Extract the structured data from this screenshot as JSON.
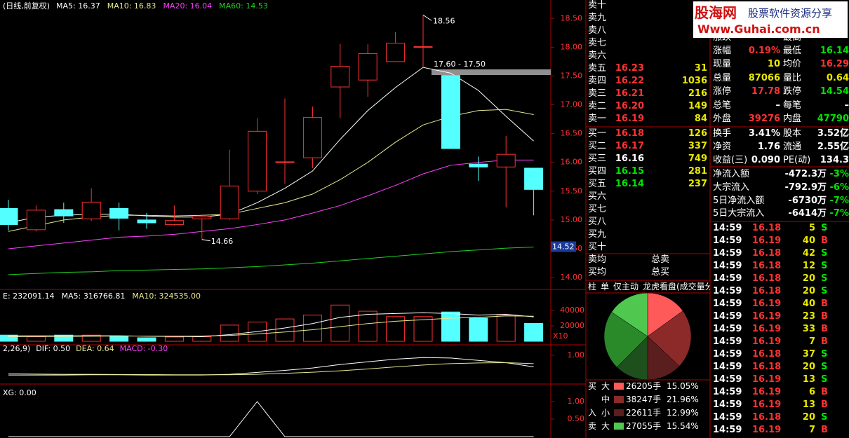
{
  "kline": {
    "title": "(日线,前复权)",
    "ma_labels": [
      {
        "text": "MA5: 16.37",
        "color": "#ffffff"
      },
      {
        "text": "MA10: 16.83",
        "color": "#e8e890"
      },
      {
        "text": "MA20: 16.04",
        "color": "#ff40ff"
      },
      {
        "text": "MA60: 14.53",
        "color": "#20d020"
      }
    ],
    "ylim": [
      13.83,
      18.82
    ],
    "yticks": [
      {
        "value": 18.5,
        "label": "18.50"
      },
      {
        "value": 18,
        "label": "18.00"
      },
      {
        "value": 17.5,
        "label": "17.50"
      },
      {
        "value": 17,
        "label": "17.00"
      },
      {
        "value": 16.5,
        "label": "16.50"
      },
      {
        "value": 16,
        "label": "16.00"
      },
      {
        "value": 15.5,
        "label": "15.50"
      },
      {
        "value": 15,
        "label": "15.00"
      },
      {
        "value": 14.5,
        "label": "14.50"
      },
      {
        "value": 14,
        "label": "14.00"
      }
    ],
    "up_color": "#ff3232",
    "down_color": "#54ffff",
    "candles": [
      {
        "o": 15.2,
        "h": 15.35,
        "l": 14.82,
        "c": 14.92
      },
      {
        "o": 14.83,
        "h": 15.25,
        "l": 14.8,
        "c": 15.17
      },
      {
        "o": 15.18,
        "h": 15.3,
        "l": 14.95,
        "c": 15.07
      },
      {
        "o": 15.02,
        "h": 15.55,
        "l": 14.98,
        "c": 15.31
      },
      {
        "o": 15.2,
        "h": 15.3,
        "l": 14.82,
        "c": 15.03
      },
      {
        "o": 15.0,
        "h": 15.12,
        "l": 14.85,
        "c": 14.95
      },
      {
        "o": 14.92,
        "h": 15.25,
        "l": 14.9,
        "c": 14.99
      },
      {
        "o": 15.02,
        "h": 15.1,
        "l": 14.66,
        "c": 15.06
      },
      {
        "o": 15.02,
        "h": 16.22,
        "l": 15.0,
        "c": 15.59
      },
      {
        "o": 15.5,
        "h": 16.77,
        "l": 15.45,
        "c": 16.54
      },
      {
        "o": 16.0,
        "h": 17.11,
        "l": 15.63,
        "c": 16.01
      },
      {
        "o": 16.08,
        "h": 16.97,
        "l": 15.9,
        "c": 16.78
      },
      {
        "o": 17.31,
        "h": 18.06,
        "l": 16.77,
        "c": 17.67
      },
      {
        "o": 17.43,
        "h": 18.05,
        "l": 17.14,
        "c": 17.89
      },
      {
        "o": 17.75,
        "h": 18.26,
        "l": 17.75,
        "c": 18.07
      },
      {
        "o": 18.0,
        "h": 18.56,
        "l": 17.65,
        "c": 18.01
      },
      {
        "o": 17.51,
        "h": 17.51,
        "l": 16.24,
        "c": 16.24
      },
      {
        "o": 15.97,
        "h": 16.1,
        "l": 15.68,
        "c": 15.92
      },
      {
        "o": 15.92,
        "h": 16.46,
        "l": 15.22,
        "c": 16.14
      },
      {
        "o": 15.9,
        "h": 15.9,
        "l": 15.08,
        "c": 15.53
      }
    ],
    "ma": [
      {
        "color": "#ffffff",
        "values": [
          14.95,
          15.05,
          15.08,
          15.1,
          15.1,
          15.07,
          15.05,
          15.05,
          15.1,
          15.3,
          15.55,
          15.85,
          16.4,
          16.9,
          17.3,
          17.65,
          17.55,
          17.25,
          16.8,
          16.37
        ]
      },
      {
        "color": "#e8e890",
        "values": [
          14.8,
          14.9,
          15.0,
          15.05,
          15.08,
          15.08,
          15.07,
          15.08,
          15.1,
          15.2,
          15.3,
          15.45,
          15.7,
          16.0,
          16.35,
          16.65,
          16.8,
          16.9,
          16.92,
          16.83
        ]
      },
      {
        "color": "#ff40ff",
        "values": [
          14.5,
          14.55,
          14.6,
          14.65,
          14.7,
          14.72,
          14.75,
          14.8,
          14.85,
          14.92,
          15.0,
          15.12,
          15.25,
          15.42,
          15.6,
          15.8,
          15.95,
          16.0,
          16.04,
          16.04
        ]
      },
      {
        "color": "#20d020",
        "values": [
          14.05,
          14.07,
          14.09,
          14.1,
          14.12,
          14.13,
          14.14,
          14.15,
          14.17,
          14.19,
          14.22,
          14.25,
          14.29,
          14.33,
          14.37,
          14.41,
          14.45,
          14.48,
          14.51,
          14.53
        ]
      }
    ],
    "high_label": "18.56",
    "low_label": "14.66",
    "range_label": "17.60 - 17.50",
    "price_tag": "14.52"
  },
  "volume": {
    "labels": [
      {
        "text": "E: 232091.14",
        "color": "#ffffff"
      },
      {
        "text": "MA5: 316766.81",
        "color": "#ffffff"
      },
      {
        "text": "MA10: 324535.00",
        "color": "#e8e890"
      }
    ],
    "unit_label": "X10",
    "ylim": [
      0,
      65455
    ],
    "yticks": [
      40000,
      20000
    ],
    "values": [
      8000,
      6000,
      8000,
      8000,
      6000,
      4500,
      5500,
      6000,
      21000,
      25000,
      29000,
      34000,
      47000,
      39000,
      32000,
      32000,
      38000,
      30000,
      34000,
      23209
    ],
    "ma5": [
      7000,
      7000,
      7000,
      7200,
      7200,
      6600,
      6400,
      6000,
      8600,
      12600,
      17300,
      23000,
      31000,
      35000,
      36000,
      37000,
      36000,
      34000,
      35000,
      31677
    ],
    "ma10": [
      6000,
      6200,
      6400,
      6600,
      6800,
      6800,
      6800,
      6800,
      7600,
      9600,
      12000,
      15000,
      19000,
      23000,
      26000,
      28000,
      30000,
      31000,
      33000,
      32454
    ]
  },
  "macd": {
    "labels": [
      {
        "text": "2,26,9)",
        "color": "#ffffff"
      },
      {
        "text": "DIF: 0.50",
        "color": "#ffffff"
      },
      {
        "text": "DEA: 0.64",
        "color": "#e8e890"
      },
      {
        "text": "MACD: -0.30",
        "color": "#ff40ff"
      }
    ],
    "ylim": [
      -0.15,
      1.36
    ],
    "yticks": [
      {
        "value": 1,
        "label": "1.00"
      }
    ],
    "dif": [
      0.15,
      0.15,
      0.15,
      0.16,
      0.16,
      0.15,
      0.15,
      0.15,
      0.18,
      0.26,
      0.35,
      0.45,
      0.6,
      0.72,
      0.83,
      0.9,
      0.88,
      0.78,
      0.68,
      0.5
    ],
    "dea": [
      0.2,
      0.19,
      0.18,
      0.18,
      0.17,
      0.17,
      0.16,
      0.16,
      0.16,
      0.18,
      0.22,
      0.27,
      0.33,
      0.41,
      0.5,
      0.58,
      0.64,
      0.67,
      0.68,
      0.64
    ]
  },
  "xg": {
    "label": "XG: 0.00",
    "ylim": [
      -0.04,
      1.36
    ],
    "yticks": [
      {
        "value": 1,
        "label": "1.00"
      },
      {
        "value": 0.5,
        "label": "0.50"
      }
    ],
    "values": [
      0,
      0,
      0,
      0,
      0,
      0,
      0,
      0,
      0,
      1,
      0,
      0,
      0,
      0,
      0,
      0,
      0,
      0,
      0,
      0
    ]
  },
  "order_book": {
    "sell": [
      {
        "label": "卖十"
      },
      {
        "label": "卖九"
      },
      {
        "label": "卖八"
      },
      {
        "label": "卖七"
      },
      {
        "label": "卖六"
      },
      {
        "label": "卖五",
        "price": "16.23",
        "volume": "31",
        "color": "#ff3232"
      },
      {
        "label": "卖四",
        "price": "16.22",
        "volume": "1036",
        "color": "#ff3232"
      },
      {
        "label": "卖三",
        "price": "16.21",
        "volume": "216",
        "color": "#ff3232"
      },
      {
        "label": "卖二",
        "price": "16.20",
        "volume": "149",
        "color": "#ff3232"
      },
      {
        "label": "卖一",
        "price": "16.19",
        "volume": "84",
        "color": "#ff3232"
      }
    ],
    "buy": [
      {
        "label": "买一",
        "price": "16.18",
        "volume": "126",
        "color": "#ff3232"
      },
      {
        "label": "买二",
        "price": "16.17",
        "volume": "337",
        "color": "#ff3232"
      },
      {
        "label": "买三",
        "price": "16.16",
        "volume": "749",
        "color": "#ffffff"
      },
      {
        "label": "买四",
        "price": "16.15",
        "volume": "281",
        "color": "#00e600"
      },
      {
        "label": "买五",
        "price": "16.14",
        "volume": "237",
        "color": "#00e600"
      },
      {
        "label": "买六"
      },
      {
        "label": "买七"
      },
      {
        "label": "买八"
      },
      {
        "label": "买九"
      },
      {
        "label": "买十"
      }
    ],
    "avg_sell": "卖均",
    "total_sell": "总卖",
    "avg_buy": "买均",
    "total_buy": "总买"
  },
  "tabs": [
    "柱",
    "单",
    "仅主动",
    "龙虎看盘(成交量分"
  ],
  "flow_pie": {
    "slices": [
      {
        "value": 15.05,
        "color": "#ff5a5a"
      },
      {
        "value": 21.96,
        "color": "#8c2a2a"
      },
      {
        "value": 12.99,
        "color": "#5a1e1e"
      },
      {
        "value": 12.46,
        "color": "#1e501e"
      },
      {
        "value": 22.0,
        "color": "#2a8a2a"
      },
      {
        "value": 15.54,
        "color": "#50c850"
      }
    ],
    "buy_side": [
      "买",
      "入"
    ],
    "sell_side": "卖",
    "rows": [
      {
        "size": "大",
        "color": "#ff5a5a",
        "amount": "26205手",
        "pct": "15.05%"
      },
      {
        "size": "中",
        "color": "#8c2a2a",
        "amount": "38247手",
        "pct": "21.96%"
      },
      {
        "size": "小",
        "color": "#5a1e1e",
        "amount": "22611手",
        "pct": "12.99%"
      },
      {
        "size": "大",
        "color": "#50c850",
        "amount": "27055手",
        "pct": "15.54%"
      }
    ]
  },
  "logo": {
    "name": "股海网",
    "slogan": "股票软件资源分享",
    "url": "Www.Guhai.com.cn"
  },
  "quote": {
    "partial_row": [
      "涨跌",
      "最高"
    ],
    "rows": [
      [
        {
          "t": "涨幅"
        },
        {
          "t": "0.19%",
          "c": "#ff3232"
        },
        {
          "t": "最低"
        },
        {
          "t": "16.14",
          "c": "#00e600"
        }
      ],
      [
        {
          "t": "现量"
        },
        {
          "t": "10",
          "c": "#e8e800"
        },
        {
          "t": "均价"
        },
        {
          "t": "16.29",
          "c": "#ff3232"
        }
      ],
      [
        {
          "t": "总量"
        },
        {
          "t": "87066",
          "c": "#e8e800"
        },
        {
          "t": "量比"
        },
        {
          "t": "0.64",
          "c": "#e8e800"
        }
      ],
      [
        {
          "t": "涨停"
        },
        {
          "t": "17.78",
          "c": "#ff3232"
        },
        {
          "t": "跌停"
        },
        {
          "t": "14.54",
          "c": "#00e600"
        }
      ],
      [
        {
          "t": "总笔"
        },
        {
          "t": "–",
          "c": "#ffffff"
        },
        {
          "t": "每笔"
        },
        {
          "t": "–",
          "c": "#ffffff"
        }
      ],
      [
        {
          "t": "外盘"
        },
        {
          "t": "39276",
          "c": "#ff3232"
        },
        {
          "t": "内盘"
        },
        {
          "t": "47790",
          "c": "#00e600"
        }
      ],
      [
        {
          "t": "换手"
        },
        {
          "t": "3.41%",
          "c": "#ffffff"
        },
        {
          "t": "股本"
        },
        {
          "t": "3.52亿",
          "c": "#ffffff"
        }
      ],
      [
        {
          "t": "净资"
        },
        {
          "t": "1.76",
          "c": "#ffffff"
        },
        {
          "t": "流通"
        },
        {
          "t": "2.55亿",
          "c": "#ffffff"
        }
      ],
      [
        {
          "t": "收益(三)"
        },
        {
          "t": "0.090",
          "c": "#ffffff"
        },
        {
          "t": "PE(动)"
        },
        {
          "t": "134.3",
          "c": "#ffffff"
        }
      ]
    ],
    "flows": [
      [
        {
          "t": "净流入额"
        },
        {
          "t": "-472.3万",
          "c": "#ffffff"
        },
        {
          "t": "-3%",
          "c": "#00e600"
        }
      ],
      [
        {
          "t": "大宗流入"
        },
        {
          "t": "-792.9万",
          "c": "#ffffff"
        },
        {
          "t": "-6%",
          "c": "#00e600"
        }
      ],
      [
        {
          "t": "5日净流入额"
        },
        {
          "t": "-6730万",
          "c": "#ffffff"
        },
        {
          "t": "-7%",
          "c": "#00e600"
        }
      ],
      [
        {
          "t": "5日大宗流入"
        },
        {
          "t": "-6414万",
          "c": "#ffffff"
        },
        {
          "t": "-7%",
          "c": "#00e600"
        }
      ]
    ]
  },
  "trades": {
    "price_color": "#ff3232",
    "side_colors": {
      "B": "#ff3232",
      "S": "#00e600"
    },
    "rows": [
      [
        "14:59",
        "16.18",
        "5",
        "S"
      ],
      [
        "14:59",
        "16.19",
        "40",
        "B"
      ],
      [
        "14:59",
        "16.18",
        "42",
        "S"
      ],
      [
        "14:59",
        "16.18",
        "12",
        "S"
      ],
      [
        "14:59",
        "16.18",
        "20",
        "S"
      ],
      [
        "14:59",
        "16.18",
        "20",
        "S"
      ],
      [
        "14:59",
        "16.19",
        "40",
        "B"
      ],
      [
        "14:59",
        "16.19",
        "23",
        "B"
      ],
      [
        "14:59",
        "16.19",
        "33",
        "B"
      ],
      [
        "14:59",
        "16.19",
        "7",
        "B"
      ],
      [
        "14:59",
        "16.18",
        "37",
        "S"
      ],
      [
        "14:59",
        "16.18",
        "20",
        "S"
      ],
      [
        "14:59",
        "16.19",
        "13",
        "S"
      ],
      [
        "14:59",
        "16.19",
        "6",
        "B"
      ],
      [
        "14:59",
        "16.19",
        "13",
        "B"
      ],
      [
        "14:59",
        "16.18",
        "20",
        "S"
      ],
      [
        "14:59",
        "16.19",
        "7",
        "B"
      ]
    ]
  }
}
